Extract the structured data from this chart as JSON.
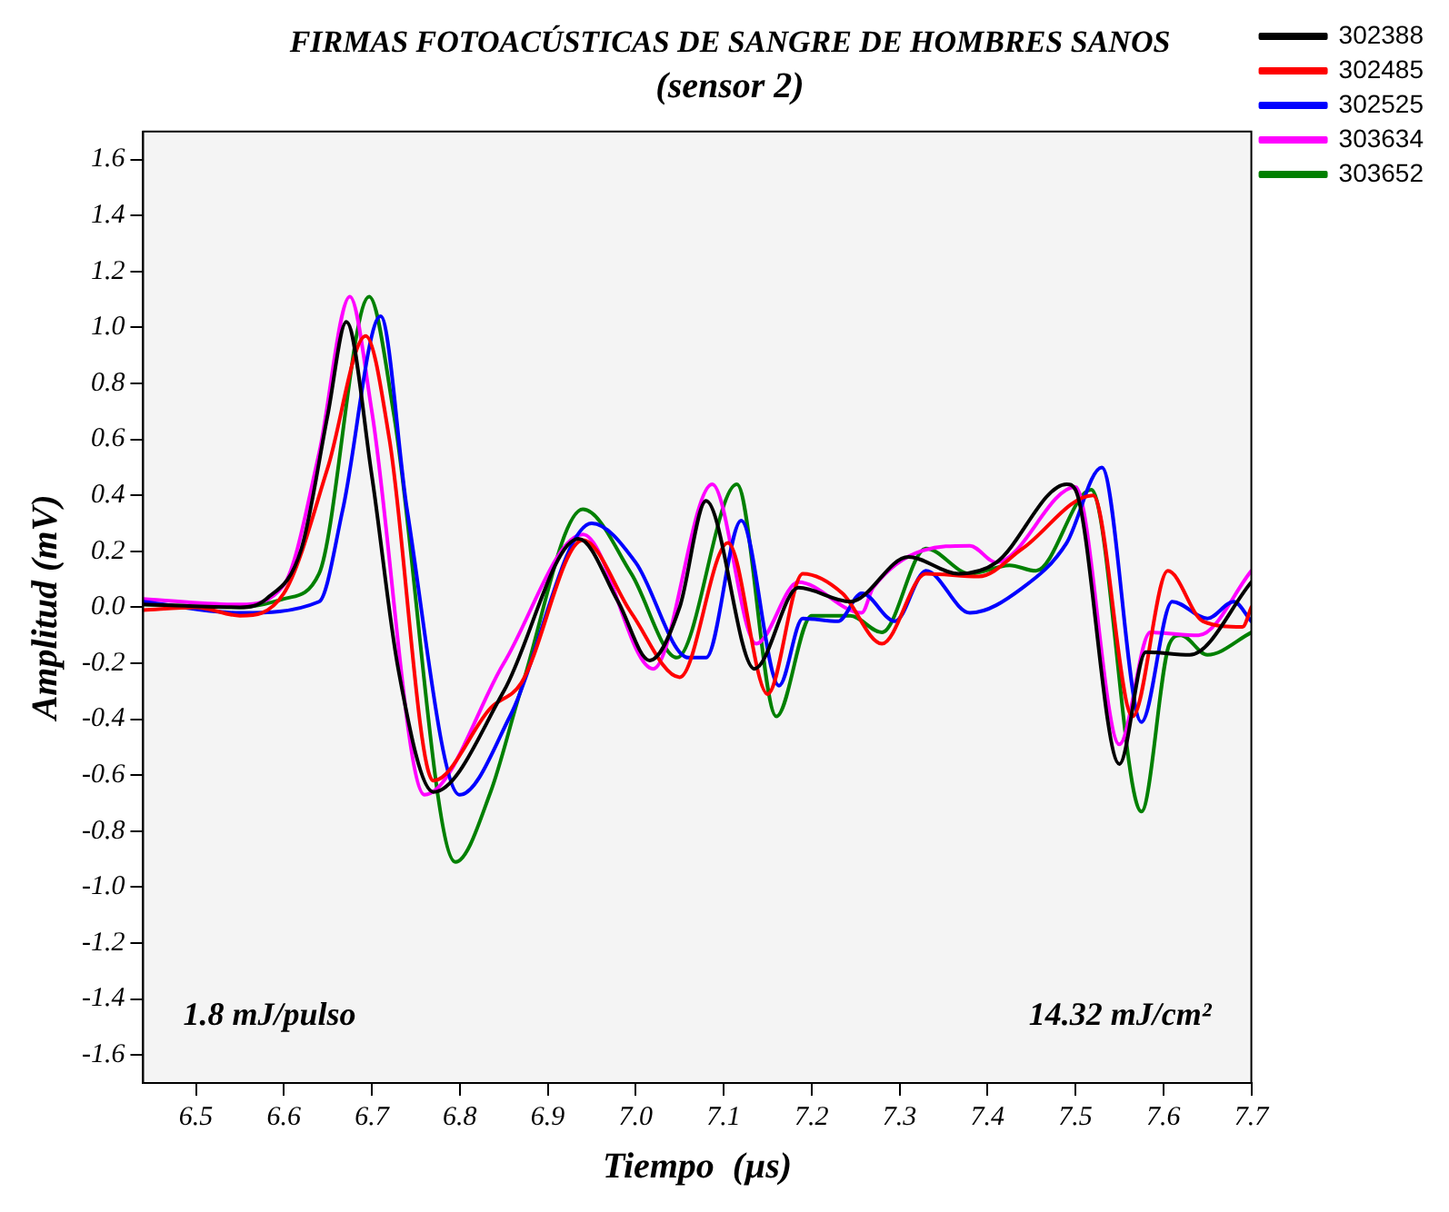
{
  "chart_data": {
    "type": "line",
    "title": "FIRMAS FOTOACÚSTICAS DE SANGRE DE HOMBRES SANOS",
    "subtitle": "(sensor 2)",
    "xlabel": "Tiempo  (µs)",
    "ylabel": "Amplitud (mV)",
    "annotations": [
      "1.8 mJ/pulso",
      "14.32 mJ/cm²"
    ],
    "xlim": [
      6.44,
      7.7
    ],
    "ylim": [
      -1.7,
      1.7
    ],
    "xticks": [
      6.5,
      6.6,
      6.7,
      6.8,
      6.9,
      {
        "value": 7,
        "label": "7.0"
      },
      7.1,
      7.2,
      7.3,
      7.4,
      7.5,
      7.6,
      7.7
    ],
    "yticks": [
      -1.6,
      -1.4,
      -1.2,
      {
        "value": -1,
        "label": "-1.0"
      },
      -0.8,
      -0.6,
      -0.4,
      -0.2,
      {
        "value": 0,
        "label": "0.0"
      },
      0.2,
      0.4,
      0.6,
      0.8,
      {
        "value": 1,
        "label": "1.0"
      },
      1.2,
      1.4,
      1.6
    ],
    "grid": false,
    "legend": "right",
    "marker": "none",
    "line_style": "solid",
    "series": [
      {
        "name": "302388",
        "color": "#000000",
        "x": [
          6.44,
          6.55,
          6.58,
          6.62,
          6.65,
          6.671,
          6.7,
          6.73,
          6.77,
          6.85,
          6.935,
          6.98,
          7.016,
          7.05,
          7.08,
          7.135,
          7.185,
          7.244,
          7.31,
          7.367,
          7.41,
          7.49,
          7.5,
          7.55,
          7.58,
          7.63,
          7.7
        ],
        "values": [
          0.01,
          0.0,
          0.03,
          0.21,
          0.69,
          1.02,
          0.47,
          -0.22,
          -0.66,
          -0.3,
          0.245,
          0.02,
          -0.19,
          0.0,
          0.38,
          -0.22,
          0.07,
          0.02,
          0.18,
          0.12,
          0.16,
          0.44,
          0.42,
          -0.56,
          -0.16,
          -0.17,
          0.09
        ]
      },
      {
        "name": "302485",
        "color": "#ff0000",
        "x": [
          6.44,
          6.5,
          6.55,
          6.6,
          6.65,
          6.693,
          6.72,
          6.77,
          6.835,
          6.87,
          6.94,
          6.995,
          7.05,
          7.105,
          7.15,
          7.19,
          7.235,
          7.28,
          7.33,
          7.39,
          7.44,
          7.52,
          7.565,
          7.605,
          7.645,
          7.69,
          7.7
        ],
        "values": [
          -0.01,
          0.0,
          -0.03,
          0.05,
          0.5,
          0.97,
          0.6,
          -0.62,
          -0.36,
          -0.27,
          0.24,
          -0.02,
          -0.25,
          0.23,
          -0.31,
          0.12,
          0.05,
          -0.13,
          0.12,
          0.11,
          0.21,
          0.4,
          -0.39,
          0.13,
          -0.05,
          -0.07,
          0.0
        ]
      },
      {
        "name": "302525",
        "color": "#0000ff",
        "x": [
          6.44,
          6.55,
          6.64,
          6.667,
          6.71,
          6.74,
          6.8,
          6.857,
          6.95,
          7.0,
          7.06,
          7.08,
          7.12,
          7.163,
          7.19,
          7.23,
          7.257,
          7.295,
          7.33,
          7.38,
          7.44,
          7.49,
          7.53,
          7.575,
          7.61,
          7.65,
          7.68,
          7.7
        ],
        "values": [
          0.02,
          -0.02,
          0.02,
          0.35,
          1.04,
          0.35,
          -0.67,
          -0.39,
          0.3,
          0.16,
          -0.18,
          -0.18,
          0.31,
          -0.28,
          -0.04,
          -0.05,
          0.05,
          -0.05,
          0.13,
          -0.02,
          0.07,
          0.23,
          0.5,
          -0.41,
          0.02,
          -0.04,
          0.02,
          -0.05
        ]
      },
      {
        "name": "303634",
        "color": "#ff00ff",
        "x": [
          6.44,
          6.55,
          6.6,
          6.64,
          6.675,
          6.7,
          6.76,
          6.85,
          6.94,
          7.02,
          7.087,
          7.137,
          7.185,
          7.257,
          7.27,
          7.38,
          7.41,
          7.5,
          7.55,
          7.585,
          7.64,
          7.7
        ],
        "values": [
          0.03,
          0.01,
          0.08,
          0.55,
          1.11,
          0.7,
          -0.67,
          -0.2,
          0.26,
          -0.22,
          0.44,
          -0.13,
          0.09,
          -0.02,
          0.07,
          0.22,
          0.16,
          0.43,
          -0.49,
          -0.09,
          -0.1,
          0.13
        ]
      },
      {
        "name": "303652",
        "color": "#008000",
        "x": [
          6.44,
          6.55,
          6.6,
          6.64,
          6.697,
          6.725,
          6.795,
          6.835,
          6.87,
          6.94,
          6.995,
          7.047,
          7.115,
          7.16,
          7.2,
          7.244,
          7.28,
          7.33,
          7.38,
          7.425,
          7.455,
          7.518,
          7.575,
          7.607,
          7.62,
          7.65,
          7.7
        ],
        "values": [
          0.01,
          0.0,
          0.03,
          0.12,
          1.11,
          0.69,
          -0.91,
          -0.66,
          -0.29,
          0.35,
          0.12,
          -0.18,
          0.44,
          -0.39,
          -0.03,
          -0.03,
          -0.09,
          0.21,
          0.12,
          0.15,
          0.13,
          0.42,
          -0.73,
          -0.13,
          -0.1,
          -0.17,
          -0.09
        ]
      }
    ]
  }
}
